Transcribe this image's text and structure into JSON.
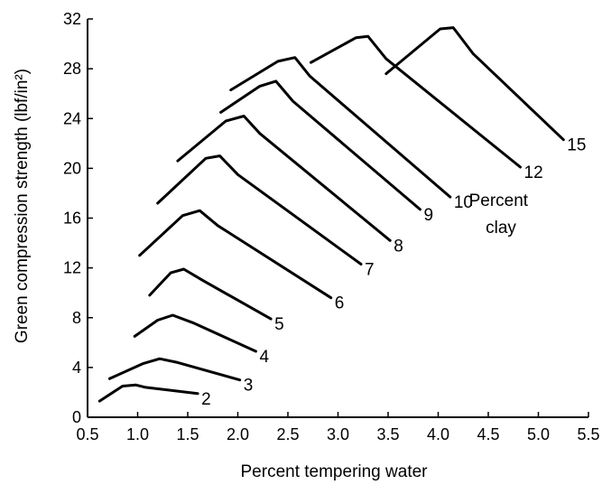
{
  "chart_data": {
    "type": "line",
    "xlabel": "Percent tempering water",
    "ylabel": "Green compression strength (lbf/in²)",
    "xlim": [
      0.5,
      5.5
    ],
    "ylim": [
      0,
      32
    ],
    "x_ticks": [
      0.5,
      1.0,
      1.5,
      2.0,
      2.5,
      3.0,
      3.5,
      4.0,
      4.5,
      5.0,
      5.5
    ],
    "x_tick_labels": [
      "0.5",
      "1.0",
      "1.5",
      "2.0",
      "2.5",
      "3.0",
      "3.5",
      "4.0",
      "4.5",
      "5.0",
      "5.5"
    ],
    "y_ticks": [
      0,
      4,
      8,
      12,
      16,
      20,
      24,
      28,
      32
    ],
    "y_tick_labels": [
      "0",
      "4",
      "8",
      "12",
      "16",
      "20",
      "24",
      "28",
      "32"
    ],
    "grid": false,
    "legend_title": "Percent\nclay",
    "series": [
      {
        "name": "2",
        "points": [
          [
            0.62,
            1.3
          ],
          [
            0.85,
            2.5
          ],
          [
            0.98,
            2.6
          ],
          [
            1.08,
            2.4
          ],
          [
            1.6,
            1.9
          ]
        ]
      },
      {
        "name": "3",
        "points": [
          [
            0.72,
            3.1
          ],
          [
            1.05,
            4.3
          ],
          [
            1.22,
            4.7
          ],
          [
            1.4,
            4.4
          ],
          [
            2.02,
            3.0
          ]
        ]
      },
      {
        "name": "4",
        "points": [
          [
            0.97,
            6.5
          ],
          [
            1.2,
            7.8
          ],
          [
            1.35,
            8.2
          ],
          [
            1.55,
            7.6
          ],
          [
            2.18,
            5.3
          ]
        ]
      },
      {
        "name": "5",
        "points": [
          [
            1.12,
            9.8
          ],
          [
            1.33,
            11.6
          ],
          [
            1.46,
            11.9
          ],
          [
            1.65,
            11.0
          ],
          [
            2.33,
            7.9
          ]
        ]
      },
      {
        "name": "6",
        "points": [
          [
            1.02,
            13.0
          ],
          [
            1.45,
            16.2
          ],
          [
            1.62,
            16.6
          ],
          [
            1.8,
            15.4
          ],
          [
            2.93,
            9.6
          ]
        ]
      },
      {
        "name": "7",
        "points": [
          [
            1.2,
            17.2
          ],
          [
            1.68,
            20.8
          ],
          [
            1.82,
            21.0
          ],
          [
            2.0,
            19.5
          ],
          [
            3.23,
            12.3
          ]
        ]
      },
      {
        "name": "8",
        "points": [
          [
            1.4,
            20.6
          ],
          [
            1.88,
            23.8
          ],
          [
            2.06,
            24.2
          ],
          [
            2.22,
            22.8
          ],
          [
            3.52,
            14.2
          ]
        ]
      },
      {
        "name": "9",
        "points": [
          [
            1.83,
            24.5
          ],
          [
            2.22,
            26.6
          ],
          [
            2.38,
            27.0
          ],
          [
            2.55,
            25.4
          ],
          [
            3.82,
            16.7
          ]
        ]
      },
      {
        "name": "10",
        "points": [
          [
            1.93,
            26.3
          ],
          [
            2.4,
            28.6
          ],
          [
            2.57,
            28.9
          ],
          [
            2.72,
            27.4
          ],
          [
            4.12,
            17.7
          ]
        ]
      },
      {
        "name": "12",
        "points": [
          [
            2.73,
            28.5
          ],
          [
            3.18,
            30.5
          ],
          [
            3.3,
            30.6
          ],
          [
            3.48,
            28.8
          ],
          [
            4.82,
            20.1
          ]
        ]
      },
      {
        "name": "15",
        "points": [
          [
            3.48,
            27.6
          ],
          [
            4.02,
            31.2
          ],
          [
            4.15,
            31.3
          ],
          [
            4.35,
            29.2
          ],
          [
            5.25,
            22.3
          ]
        ]
      }
    ]
  }
}
